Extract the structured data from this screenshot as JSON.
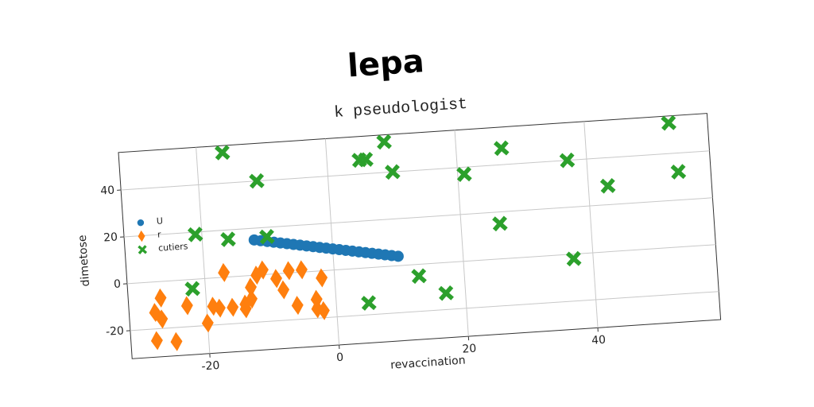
{
  "chart_data": {
    "type": "scatter",
    "title": "lepa",
    "subtitle": "k pseudologist",
    "xlabel": "revaccination",
    "ylabel": "dimetose",
    "xlim": [
      -32,
      59
    ],
    "ylim": [
      -32,
      56
    ],
    "xticks": [
      -20,
      0,
      20,
      40
    ],
    "yticks": [
      -20,
      0,
      20,
      40
    ],
    "grid": true,
    "legend": "center left",
    "series": [
      {
        "name": "U",
        "color": "#1f77b4",
        "marker": "circle",
        "x": [
          -12,
          -11,
          -10,
          -9,
          -8,
          -7,
          -6,
          -5,
          -4,
          -3,
          -2,
          -1,
          0,
          1,
          2,
          3,
          4,
          5,
          6,
          7,
          8,
          9,
          10
        ],
        "y": [
          15,
          14.5,
          14,
          13.5,
          13,
          12.5,
          12,
          11.5,
          11,
          10.5,
          10,
          9.5,
          9,
          8.5,
          8,
          7.5,
          7,
          6.5,
          6,
          5.5,
          5,
          4.5,
          4
        ]
      },
      {
        "name": "r",
        "color": "#ff7f0e",
        "marker": "diamond",
        "x": [
          -28,
          -25,
          -28,
          -27,
          -27,
          -23,
          -20,
          -19,
          -18,
          -17,
          -16,
          -14,
          -14,
          -13,
          -13,
          -12,
          -11,
          -9,
          -8,
          -7,
          -6,
          -5,
          -3,
          -3,
          -2,
          -2
        ],
        "y": [
          -25,
          -26,
          -13,
          -16,
          -7,
          -11,
          -19,
          -12,
          -13,
          2,
          -13,
          -12,
          -14,
          -5,
          -10,
          0,
          2,
          -2,
          -7,
          1,
          -14,
          1,
          -12,
          -16,
          -17,
          -3
        ]
      },
      {
        "name": "cutiers",
        "color": "#2ca02c",
        "marker": "x",
        "x": [
          -16,
          -11,
          5,
          6,
          9,
          10,
          27,
          21,
          37,
          53,
          54,
          43,
          26,
          37,
          17,
          13,
          5,
          -21,
          -16,
          -10,
          -22
        ],
        "y": [
          53,
          40,
          46,
          46,
          53,
          40,
          47,
          37,
          40,
          53,
          32,
          28,
          15,
          -2,
          -13,
          -5,
          -15,
          19,
          16,
          16,
          -4
        ]
      }
    ]
  }
}
